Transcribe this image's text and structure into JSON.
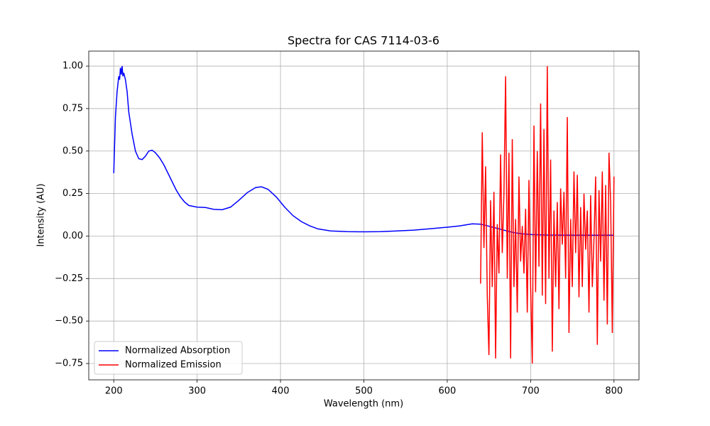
{
  "chart_data": {
    "type": "line",
    "title": "Spectra for CAS 7114-03-6",
    "xlabel": "Wavelength (nm)",
    "ylabel": "Intensity (AU)",
    "xlim": [
      170,
      830
    ],
    "ylim": [
      -0.846,
      1.088
    ],
    "xticks": [
      200,
      300,
      400,
      500,
      600,
      700,
      800
    ],
    "yticks": [
      {
        "value": -0.75,
        "label": "−0.75"
      },
      {
        "value": -0.5,
        "label": "−0.50"
      },
      {
        "value": -0.25,
        "label": "−0.25"
      },
      {
        "value": 0,
        "label": "0.00"
      },
      {
        "value": 0.25,
        "label": "0.25"
      },
      {
        "value": 0.5,
        "label": "0.50"
      },
      {
        "value": 0.75,
        "label": "0.75"
      },
      {
        "value": 1,
        "label": "1.00"
      }
    ],
    "grid": true,
    "legend": "lower left",
    "series": [
      {
        "name": "Normalized Absorption",
        "color": "#0000ff",
        "x": [
          200,
          202,
          204,
          206,
          207,
          208,
          209,
          210,
          211,
          212,
          214,
          216,
          218,
          222,
          226,
          230,
          234,
          238,
          242,
          246,
          250,
          255,
          260,
          265,
          270,
          275,
          280,
          285,
          290,
          300,
          310,
          320,
          330,
          340,
          350,
          360,
          370,
          377,
          385,
          395,
          405,
          415,
          425,
          435,
          445,
          460,
          480,
          500,
          520,
          540,
          560,
          580,
          600,
          615,
          630,
          640,
          650,
          660,
          670,
          680,
          690,
          700,
          720,
          750,
          780,
          800
        ],
        "values": [
          0.37,
          0.7,
          0.85,
          0.94,
          0.92,
          0.99,
          0.95,
          1.0,
          0.94,
          0.96,
          0.92,
          0.85,
          0.73,
          0.6,
          0.5,
          0.455,
          0.45,
          0.47,
          0.5,
          0.505,
          0.49,
          0.46,
          0.42,
          0.37,
          0.32,
          0.27,
          0.23,
          0.2,
          0.18,
          0.17,
          0.168,
          0.157,
          0.155,
          0.17,
          0.21,
          0.255,
          0.285,
          0.29,
          0.275,
          0.23,
          0.17,
          0.12,
          0.085,
          0.06,
          0.042,
          0.03,
          0.026,
          0.025,
          0.026,
          0.03,
          0.035,
          0.043,
          0.052,
          0.06,
          0.072,
          0.07,
          0.058,
          0.045,
          0.032,
          0.02,
          0.013,
          0.009,
          0.006,
          0.005,
          0.005,
          0.005
        ]
      },
      {
        "name": "Normalized Emission",
        "color": "#ff0000",
        "x": [
          640,
          642,
          644,
          646,
          648,
          650,
          652,
          654,
          656,
          658,
          660,
          662,
          664,
          666,
          668,
          670,
          672,
          674,
          676,
          678,
          680,
          682,
          684,
          686,
          688,
          690,
          692,
          694,
          696,
          698,
          700,
          702,
          704,
          706,
          708,
          710,
          712,
          714,
          716,
          718,
          720,
          722,
          724,
          726,
          728,
          730,
          732,
          734,
          736,
          738,
          740,
          742,
          744,
          746,
          748,
          750,
          752,
          754,
          756,
          758,
          760,
          762,
          764,
          766,
          768,
          770,
          772,
          774,
          776,
          778,
          780,
          782,
          784,
          786,
          788,
          790,
          792,
          794,
          796,
          798,
          800
        ],
        "values": [
          -0.28,
          0.61,
          -0.07,
          0.41,
          -0.35,
          -0.7,
          0.21,
          -0.3,
          0.26,
          -0.72,
          0.07,
          -0.22,
          0.48,
          -0.1,
          0.25,
          0.94,
          -0.25,
          0.49,
          -0.72,
          0.57,
          -0.3,
          0.1,
          -0.45,
          0.35,
          -0.15,
          0.06,
          -0.22,
          0.16,
          -0.45,
          0.33,
          -0.3,
          -0.75,
          0.65,
          -0.33,
          0.5,
          -0.18,
          0.78,
          -0.35,
          0.63,
          -0.4,
          1.0,
          -0.25,
          0.45,
          -0.68,
          0.15,
          -0.3,
          0.2,
          -0.43,
          0.28,
          -0.05,
          0.26,
          -0.25,
          0.7,
          -0.57,
          0.1,
          -0.3,
          0.38,
          -0.1,
          0.36,
          -0.36,
          0.17,
          -0.3,
          0.25,
          -0.08,
          0.15,
          -0.45,
          0.24,
          -0.3,
          -0.02,
          0.35,
          -0.64,
          0.27,
          -0.15,
          0.38,
          -0.38,
          0.3,
          -0.52,
          0.49,
          0.2,
          -0.57,
          0.35
        ]
      }
    ]
  }
}
